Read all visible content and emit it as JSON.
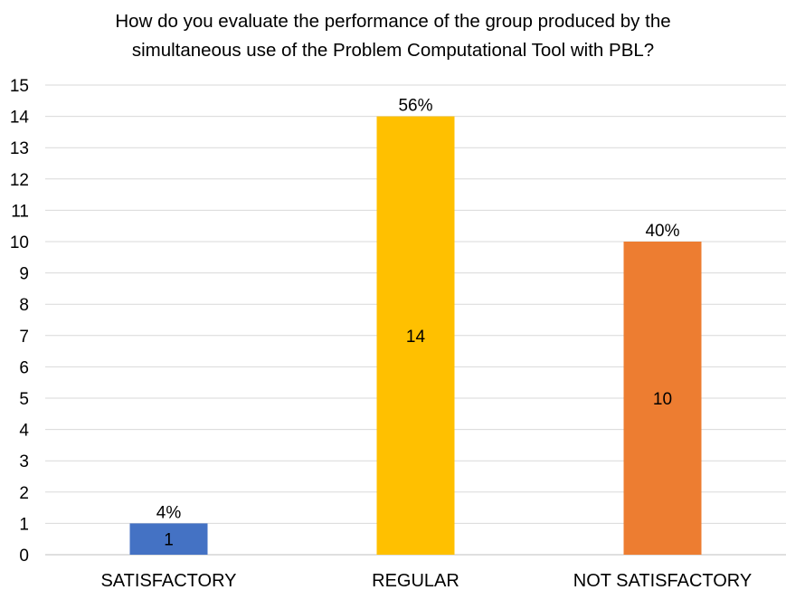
{
  "chart_data": {
    "type": "bar",
    "title_lines": [
      "How do you evaluate the performance of the group produced by the",
      "simultaneous use of the Problem Computational Tool with PBL?"
    ],
    "categories": [
      "SATISFACTORY",
      "REGULAR",
      "NOT SATISFACTORY"
    ],
    "values": [
      1,
      14,
      10
    ],
    "value_labels": [
      "1",
      "14",
      "10"
    ],
    "percent_labels": [
      "4%",
      "56%",
      "40%"
    ],
    "colors": [
      "#4472C4",
      "#FFC000",
      "#ED7D31"
    ],
    "y_ticks": [
      "0",
      "1",
      "2",
      "3",
      "4",
      "5",
      "6",
      "7",
      "8",
      "9",
      "10",
      "11",
      "12",
      "13",
      "14",
      "15"
    ],
    "ylim": [
      0,
      15
    ],
    "grid": true,
    "legend": "none"
  }
}
